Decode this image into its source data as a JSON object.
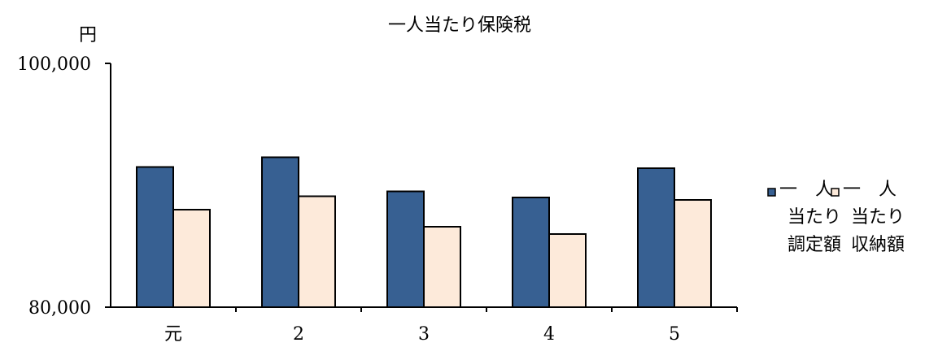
{
  "chart_data": {
    "type": "bar",
    "title": "一人当たり保険税",
    "ylabel": "円",
    "xlabel": "",
    "categories": [
      "元",
      "2",
      "3",
      "4",
      "5"
    ],
    "series": [
      {
        "name": "一人当たり調定額",
        "legend_lines": [
          "一　人",
          "当たり",
          "調定額"
        ],
        "color": "#376092",
        "values": [
          91500,
          92300,
          89500,
          89000,
          91400
        ]
      },
      {
        "name": "一人当たり収納額",
        "legend_lines": [
          "一　人",
          "当たり",
          "収納額"
        ],
        "color": "#FDEADA",
        "values": [
          88000,
          89100,
          86600,
          86000,
          88800
        ]
      }
    ],
    "ylim": [
      80000,
      100000
    ],
    "yticks": [
      "80,000",
      "100,000"
    ],
    "grid": false,
    "legend": "right"
  }
}
